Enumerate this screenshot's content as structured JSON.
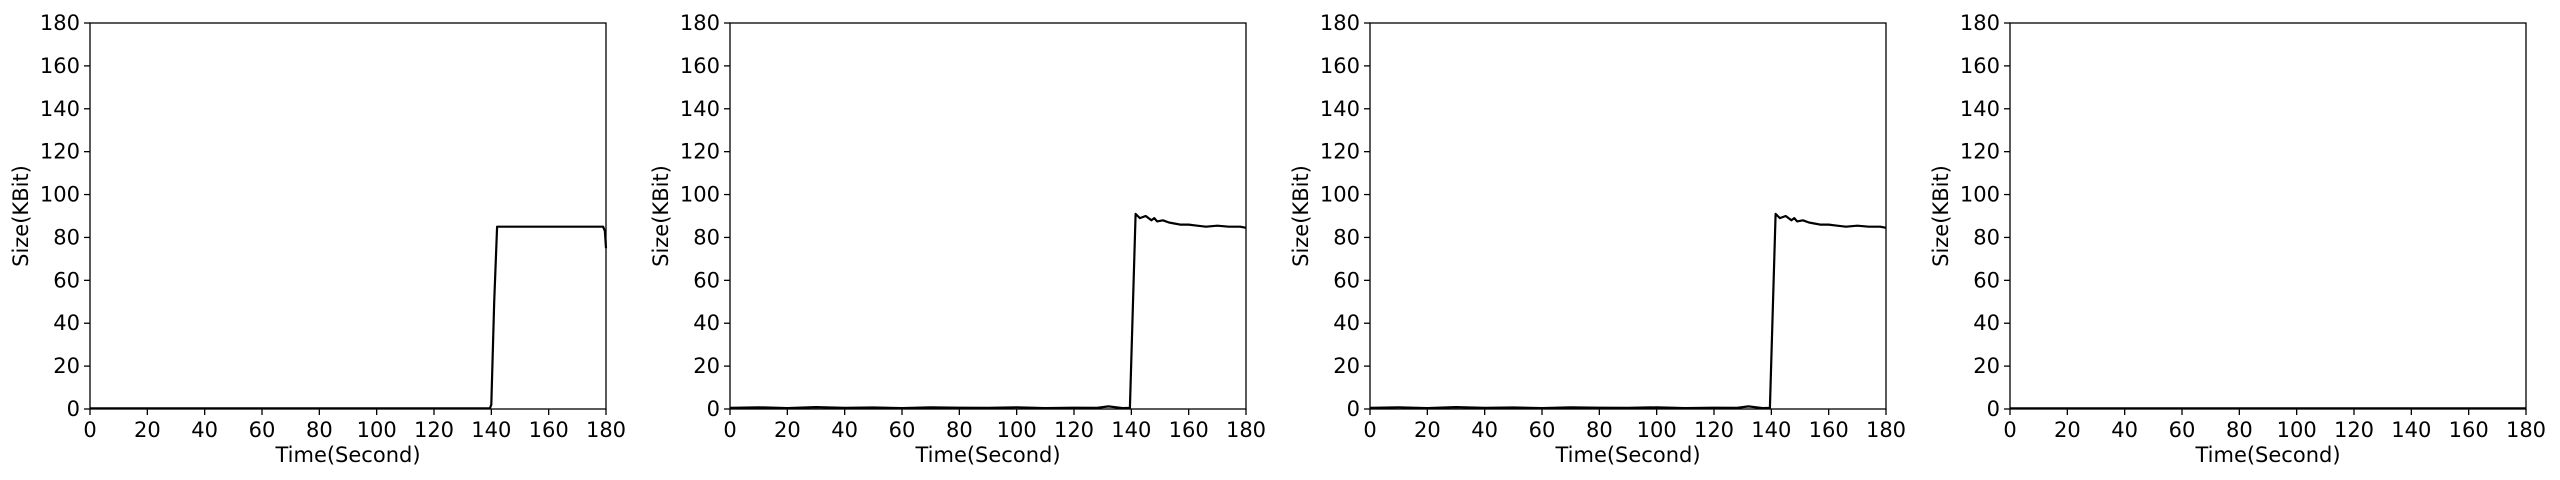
{
  "style": {
    "line_color": "#000000",
    "background": "#ffffff"
  },
  "chart_data": [
    {
      "type": "line",
      "xlabel": "Time(Second)",
      "ylabel": "Size(KBit)",
      "xlim": [
        0,
        180
      ],
      "ylim": [
        0,
        180
      ],
      "xticks": [
        0,
        20,
        40,
        60,
        80,
        100,
        120,
        140,
        160,
        180
      ],
      "yticks": [
        0,
        20,
        40,
        60,
        80,
        100,
        120,
        140,
        160,
        180
      ],
      "grid": false,
      "series": [
        {
          "x": [
            0,
            20,
            40,
            60,
            80,
            100,
            120,
            139.5,
            140,
            141,
            142,
            145,
            150,
            155,
            160,
            165,
            170,
            175,
            179,
            179.6,
            180
          ],
          "y": [
            0.3,
            0.3,
            0.3,
            0.3,
            0.3,
            0.3,
            0.3,
            0.3,
            2,
            50,
            85,
            85,
            85,
            85,
            85,
            85,
            85,
            85,
            85,
            83,
            75
          ]
        }
      ]
    },
    {
      "type": "line",
      "xlabel": "Time(Second)",
      "ylabel": "Size(KBit)",
      "xlim": [
        0,
        180
      ],
      "ylim": [
        0,
        180
      ],
      "xticks": [
        0,
        20,
        40,
        60,
        80,
        100,
        120,
        140,
        160,
        180
      ],
      "yticks": [
        0,
        20,
        40,
        60,
        80,
        100,
        120,
        140,
        160,
        180
      ],
      "grid": false,
      "series": [
        {
          "x": [
            0,
            10,
            20,
            30,
            40,
            50,
            60,
            70,
            80,
            90,
            100,
            110,
            120,
            128,
            132,
            137,
            139.5,
            141.5,
            143,
            145,
            147,
            148,
            149,
            151,
            153,
            155,
            157,
            160,
            163,
            166,
            170,
            174,
            178,
            180
          ],
          "y": [
            0.5,
            0.8,
            0.4,
            0.9,
            0.5,
            0.7,
            0.4,
            0.8,
            0.6,
            0.5,
            0.8,
            0.4,
            0.6,
            0.5,
            1.2,
            0.4,
            0.5,
            91,
            89,
            90,
            88,
            89,
            87.5,
            88,
            87,
            86.5,
            86,
            86,
            85.5,
            85,
            85.5,
            85,
            85,
            84.5
          ]
        }
      ]
    },
    {
      "type": "line",
      "xlabel": "Time(Second)",
      "ylabel": "Size(KBit)",
      "xlim": [
        0,
        180
      ],
      "ylim": [
        0,
        180
      ],
      "xticks": [
        0,
        20,
        40,
        60,
        80,
        100,
        120,
        140,
        160,
        180
      ],
      "yticks": [
        0,
        20,
        40,
        60,
        80,
        100,
        120,
        140,
        160,
        180
      ],
      "grid": false,
      "series": [
        {
          "x": [
            0,
            10,
            20,
            30,
            40,
            50,
            60,
            70,
            80,
            90,
            100,
            110,
            120,
            128,
            132,
            137,
            139.5,
            141.5,
            143,
            145,
            147,
            148,
            149,
            151,
            153,
            155,
            157,
            160,
            163,
            166,
            170,
            174,
            178,
            180
          ],
          "y": [
            0.5,
            0.8,
            0.4,
            0.9,
            0.5,
            0.7,
            0.4,
            0.8,
            0.6,
            0.5,
            0.8,
            0.4,
            0.6,
            0.5,
            1.2,
            0.4,
            0.5,
            91,
            89,
            90,
            88,
            89,
            87.5,
            88,
            87,
            86.5,
            86,
            86,
            85.5,
            85,
            85.5,
            85,
            85,
            84.5
          ]
        }
      ]
    },
    {
      "type": "line",
      "xlabel": "Time(Second)",
      "ylabel": "Size(KBit)",
      "xlim": [
        0,
        180
      ],
      "ylim": [
        0,
        180
      ],
      "xticks": [
        0,
        20,
        40,
        60,
        80,
        100,
        120,
        140,
        160,
        180
      ],
      "yticks": [
        0,
        20,
        40,
        60,
        80,
        100,
        120,
        140,
        160,
        180
      ],
      "grid": false,
      "series": [
        {
          "x": [
            0,
            20,
            40,
            60,
            80,
            100,
            120,
            140,
            160,
            180
          ],
          "y": [
            0.3,
            0.3,
            0.3,
            0.3,
            0.3,
            0.3,
            0.3,
            0.3,
            0.3,
            0.3
          ]
        }
      ]
    }
  ]
}
